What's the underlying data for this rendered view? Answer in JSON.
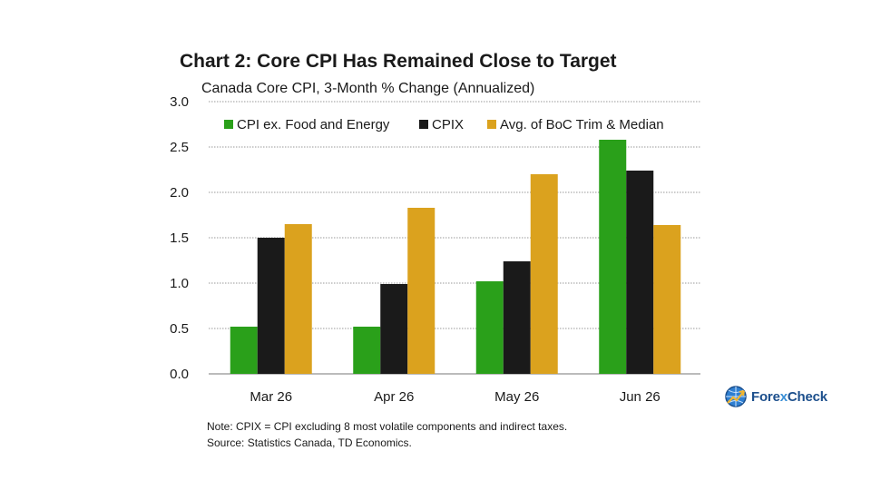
{
  "title": "Chart 2: Core CPI Has Remained Close to Target",
  "subtitle": "Canada Core CPI, 3-Month % Change (Annualized)",
  "chart_data": {
    "type": "bar",
    "title": "Chart 2: Core CPI Has Remained Close to Target",
    "subtitle": "Canada Core CPI, 3-Month % Change (Annualized)",
    "categories": [
      "Mar 26",
      "Apr 26",
      "May 26",
      "Jun 26"
    ],
    "series": [
      {
        "name": "CPI ex. Food and Energy",
        "color": "#2aa01a",
        "values": [
          0.52,
          0.52,
          1.02,
          2.58
        ]
      },
      {
        "name": "CPIX",
        "color": "#1a1a1a",
        "values": [
          1.5,
          0.99,
          1.24,
          2.24
        ]
      },
      {
        "name": "Avg. of BoC Trim & Median",
        "color": "#dba21e",
        "values": [
          1.65,
          1.83,
          2.2,
          1.64
        ]
      }
    ],
    "ylim": [
      0,
      3.0
    ],
    "yticks": [
      "0.0",
      "0.5",
      "1.0",
      "1.5",
      "2.0",
      "2.5",
      "3.0"
    ],
    "grid": true,
    "legend_position": "top"
  },
  "notes": [
    "Note: CPIX = CPI excluding 8 most volatile components and indirect taxes.",
    "Source: Statistics Canada, TD Economics."
  ],
  "logo": {
    "brand_left": "Fore",
    "brand_x": "x",
    "brand_right": "Check",
    "icon": "globe-chart-icon"
  }
}
